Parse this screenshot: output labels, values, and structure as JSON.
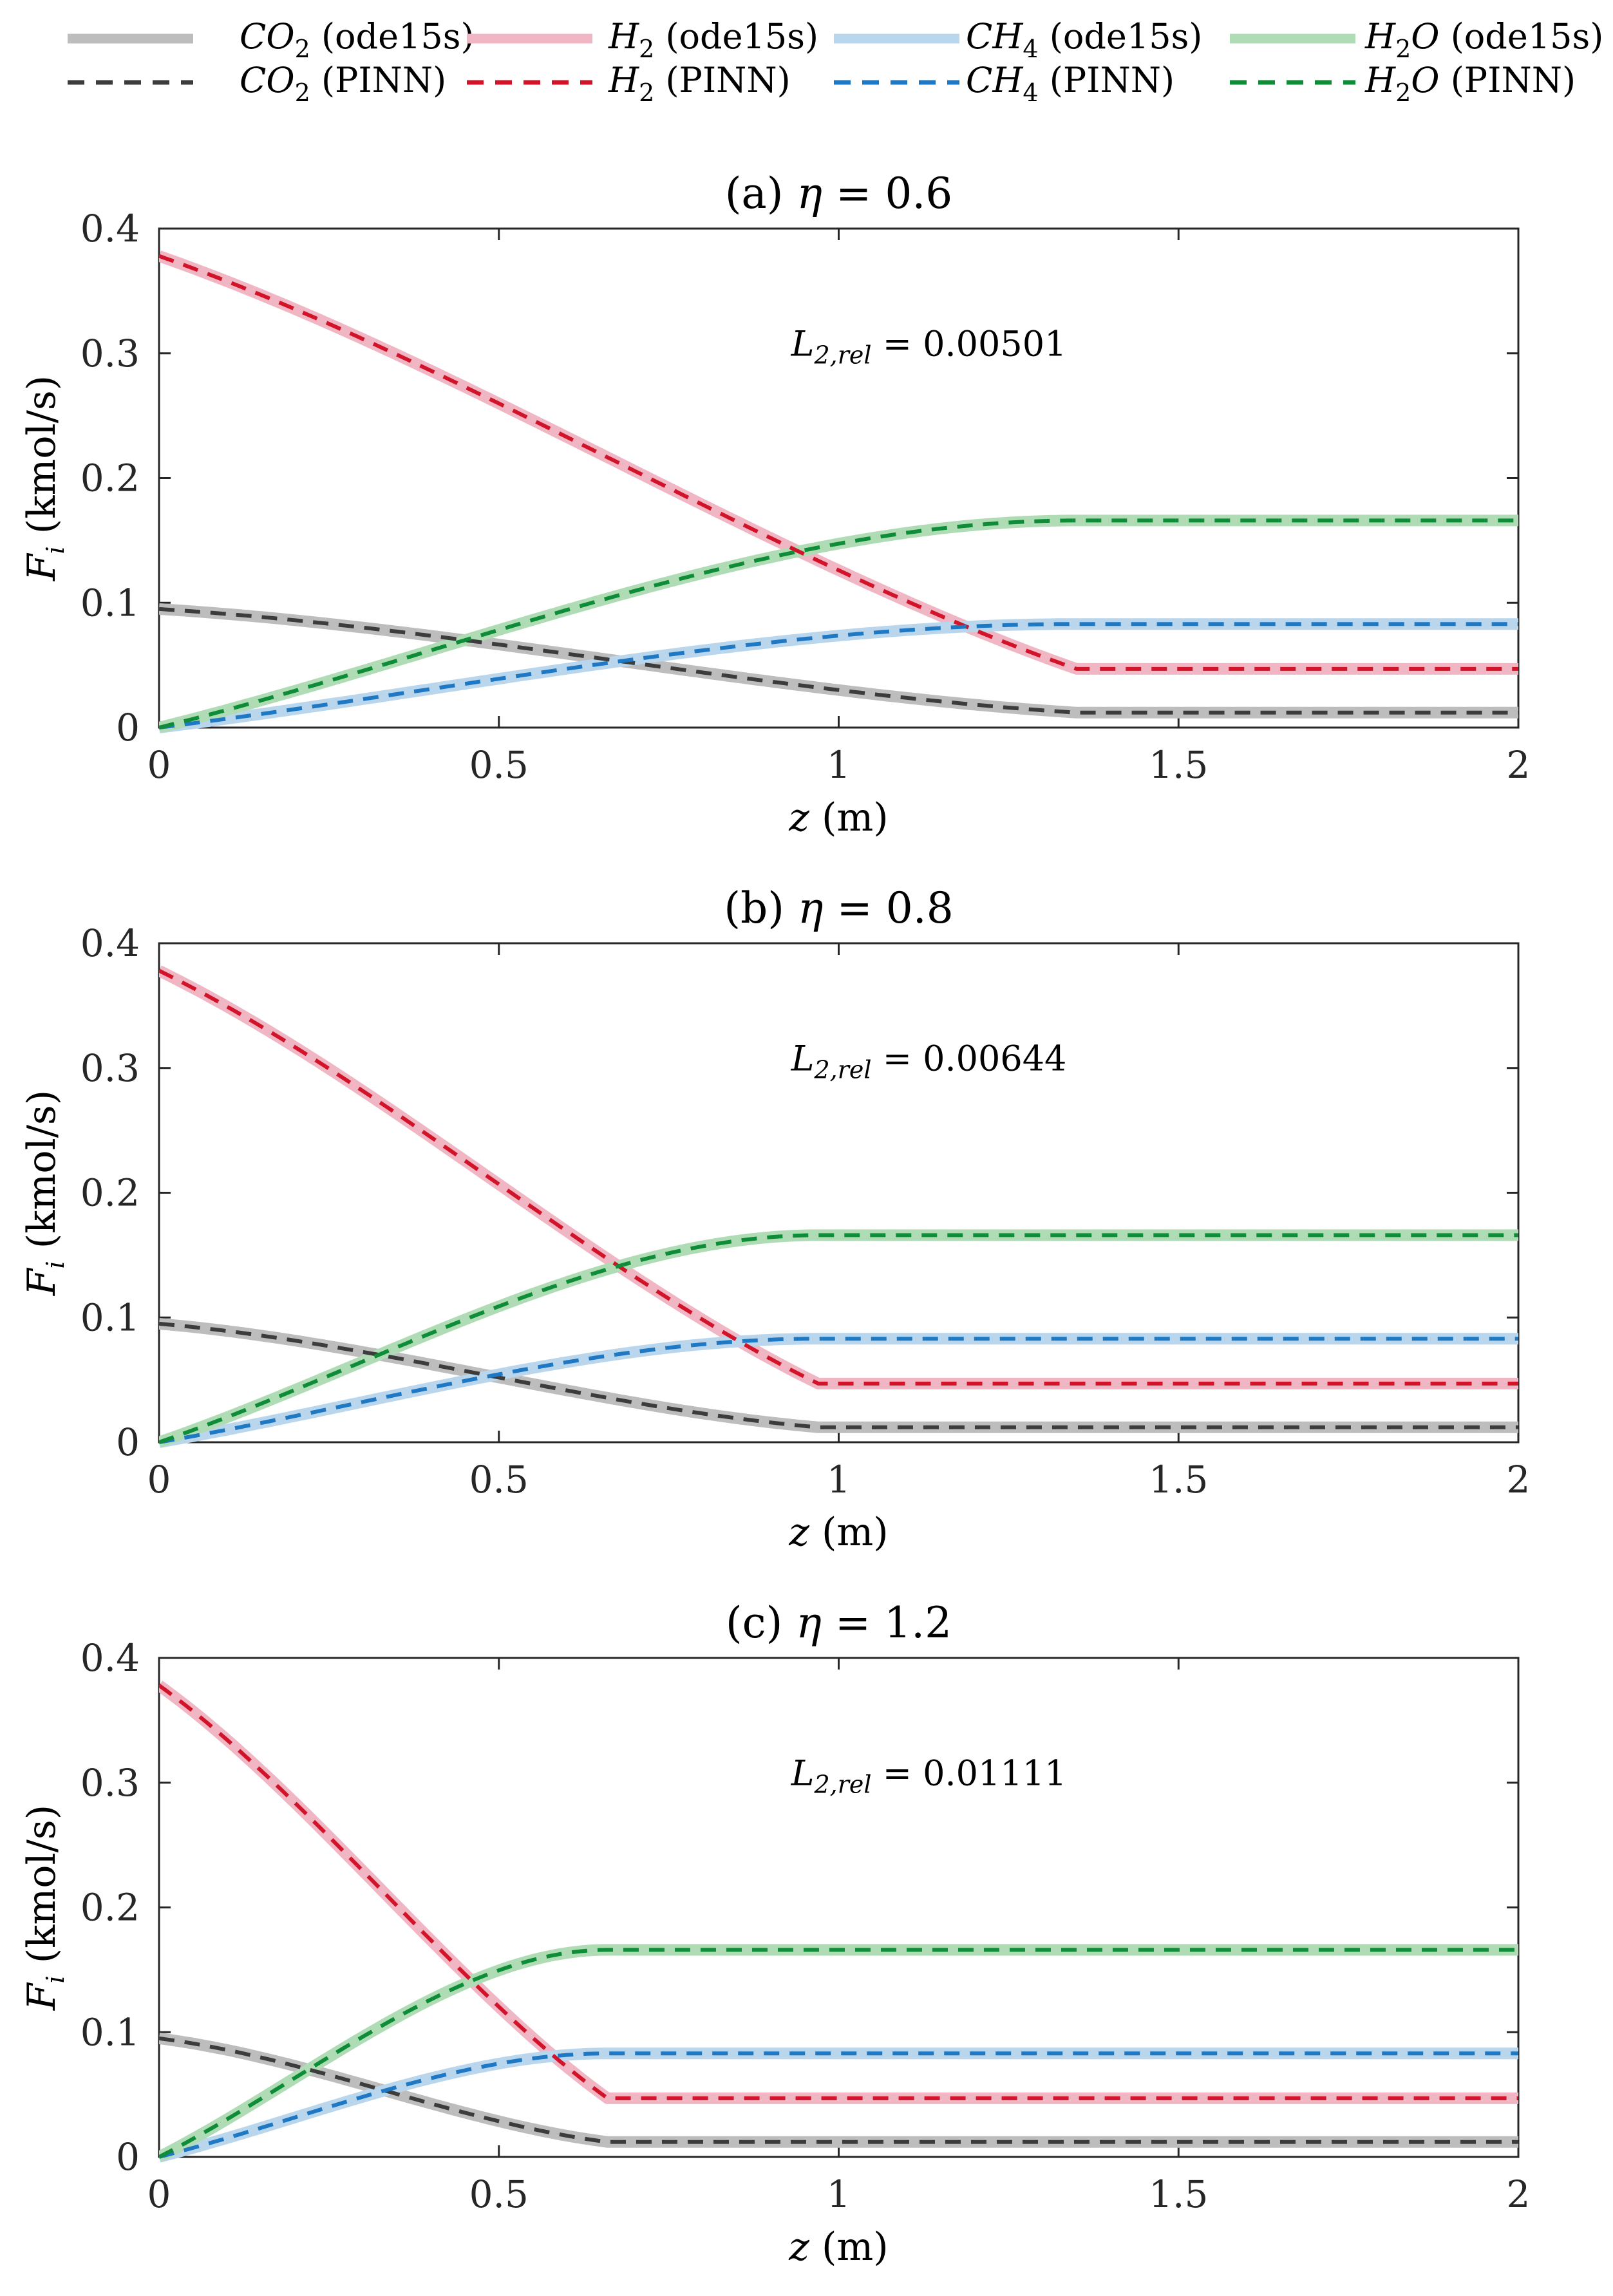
{
  "chart_data": {
    "legend": {
      "entries": [
        {
          "species": "CO",
          "sub": "2",
          "method": "(ode15s)",
          "style": "solid",
          "color": "#bdbdbd"
        },
        {
          "species": "H",
          "sub": "2",
          "method": "(ode15s)",
          "style": "solid",
          "color": "#f0b6c3"
        },
        {
          "species": "CH",
          "sub": "4",
          "method": "(ode15s)",
          "style": "solid",
          "color": "#b9d6ec"
        },
        {
          "species": "H",
          "sub": "2",
          "tail": "O",
          "method": "(ode15s)",
          "style": "solid",
          "color": "#afdcb5"
        },
        {
          "species": "CO",
          "sub": "2",
          "method": "(PINN)",
          "style": "dashed",
          "color": "#3c3c3c"
        },
        {
          "species": "H",
          "sub": "2",
          "method": "(PINN)",
          "style": "dashed",
          "color": "#d2142a"
        },
        {
          "species": "CH",
          "sub": "4",
          "method": "(PINN)",
          "style": "dashed",
          "color": "#1e78c3"
        },
        {
          "species": "H",
          "sub": "2",
          "tail": "O",
          "method": "(PINN)",
          "style": "dashed",
          "color": "#0f8c37"
        }
      ]
    },
    "panels": [
      {
        "type": "line",
        "title_prefix": "(a) ",
        "title_symbol": "η",
        "title_value": " = 0.6",
        "xlabel_var": "z",
        "xlabel_unit": " (m)",
        "ylabel_var": "F",
        "ylabel_sub": "i",
        "ylabel_unit": " (kmol/s)",
        "xlim": [
          0,
          2
        ],
        "ylim": [
          0,
          0.4
        ],
        "xticks": [
          "0",
          "0.5",
          "1",
          "1.5",
          "2"
        ],
        "yticks": [
          "0",
          "0.1",
          "0.2",
          "0.3",
          "0.4"
        ],
        "annotation_var": "L",
        "annotation_sub": "2,rel",
        "annotation_value": " = 0.00501",
        "z_end": 1.35,
        "series": [
          {
            "name": "CO2",
            "start": 0.095,
            "end": 0.012
          },
          {
            "name": "H2",
            "start": 0.378,
            "end": 0.047
          },
          {
            "name": "CH4",
            "start": 0.0,
            "end": 0.083
          },
          {
            "name": "H2O",
            "start": 0.0,
            "end": 0.166
          }
        ]
      },
      {
        "type": "line",
        "title_prefix": "(b) ",
        "title_symbol": "η",
        "title_value": " = 0.8",
        "xlabel_var": "z",
        "xlabel_unit": " (m)",
        "ylabel_var": "F",
        "ylabel_sub": "i",
        "ylabel_unit": " (kmol/s)",
        "xlim": [
          0,
          2
        ],
        "ylim": [
          0,
          0.4
        ],
        "xticks": [
          "0",
          "0.5",
          "1",
          "1.5",
          "2"
        ],
        "yticks": [
          "0",
          "0.1",
          "0.2",
          "0.3",
          "0.4"
        ],
        "annotation_var": "L",
        "annotation_sub": "2,rel",
        "annotation_value": " = 0.00644",
        "z_end": 0.97,
        "series": [
          {
            "name": "CO2",
            "start": 0.095,
            "end": 0.012
          },
          {
            "name": "H2",
            "start": 0.378,
            "end": 0.047
          },
          {
            "name": "CH4",
            "start": 0.0,
            "end": 0.083
          },
          {
            "name": "H2O",
            "start": 0.0,
            "end": 0.166
          }
        ]
      },
      {
        "type": "line",
        "title_prefix": "(c) ",
        "title_symbol": "η",
        "title_value": " = 1.2",
        "xlabel_var": "z",
        "xlabel_unit": " (m)",
        "ylabel_var": "F",
        "ylabel_sub": "i",
        "ylabel_unit": " (kmol/s)",
        "xlim": [
          0,
          2
        ],
        "ylim": [
          0,
          0.4
        ],
        "xticks": [
          "0",
          "0.5",
          "1",
          "1.5",
          "2"
        ],
        "yticks": [
          "0",
          "0.1",
          "0.2",
          "0.3",
          "0.4"
        ],
        "annotation_var": "L",
        "annotation_sub": "2,rel",
        "annotation_value": " = 0.01111",
        "z_end": 0.66,
        "series": [
          {
            "name": "CO2",
            "start": 0.095,
            "end": 0.012
          },
          {
            "name": "H2",
            "start": 0.378,
            "end": 0.047
          },
          {
            "name": "CH4",
            "start": 0.0,
            "end": 0.083
          },
          {
            "name": "H2O",
            "start": 0.0,
            "end": 0.166
          }
        ]
      }
    ],
    "series_colors": {
      "CO2": {
        "ode": "#bdbdbd",
        "pinn": "#3c3c3c"
      },
      "H2": {
        "ode": "#f0b6c3",
        "pinn": "#d2142a"
      },
      "CH4": {
        "ode": "#b9d6ec",
        "pinn": "#1e78c3"
      },
      "H2O": {
        "ode": "#afdcb5",
        "pinn": "#0f8c37"
      }
    }
  }
}
